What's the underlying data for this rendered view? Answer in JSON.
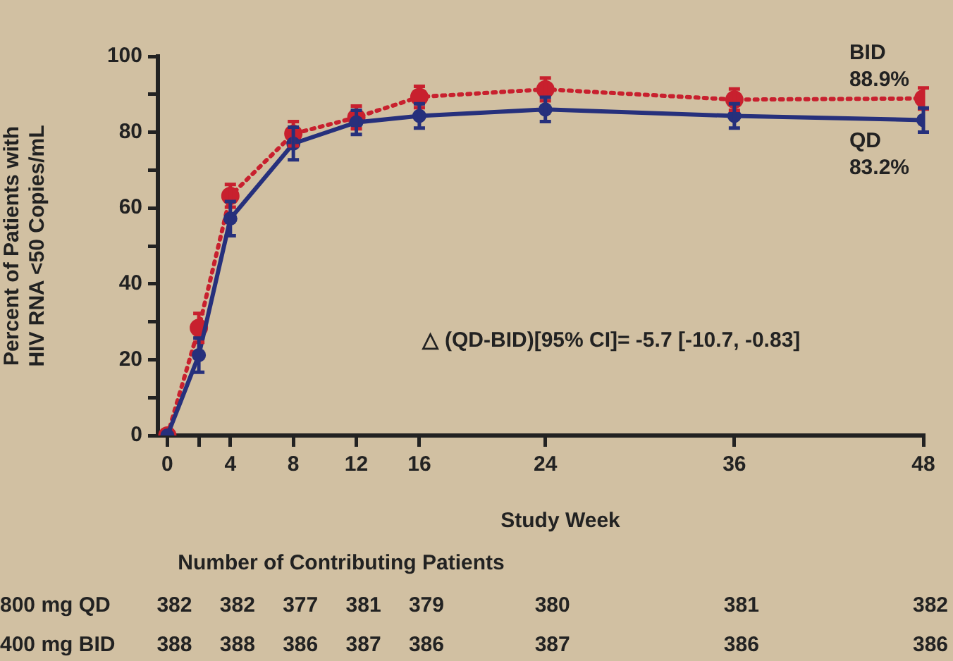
{
  "chart_data": {
    "type": "line",
    "ylabel": "Percent of Patients with\nHIV RNA <50 Copies/mL",
    "xlabel": "Study Week",
    "x": [
      0,
      2,
      4,
      8,
      12,
      16,
      24,
      36,
      48
    ],
    "xlim": [
      -0.6,
      48
    ],
    "xticks": [
      0,
      {
        "value": 2,
        "label": null
      },
      4,
      8,
      12,
      16,
      24,
      36,
      48
    ],
    "ylim": [
      0,
      100
    ],
    "yticks": [
      0,
      {
        "value": 10,
        "label": null
      },
      20,
      {
        "value": 30,
        "label": null
      },
      40,
      {
        "value": 50,
        "label": null
      },
      60,
      {
        "value": 70,
        "label": null
      },
      80,
      {
        "value": 90,
        "label": null
      },
      100
    ],
    "grid": false,
    "legend": false,
    "marker": "circle",
    "series": [
      {
        "name": "BID",
        "color": "#c8202e",
        "line_style": "dotted",
        "values": [
          0,
          28.4,
          63.2,
          79.6,
          83.9,
          89.3,
          91.3,
          88.6,
          88.9
        ],
        "errors": [
          null,
          3.8,
          3,
          3.2,
          3,
          2.8,
          3,
          2.8,
          2.8
        ],
        "value_labels": [
          null,
          null,
          null,
          null,
          null,
          null,
          null,
          null,
          "88.9%"
        ]
      },
      {
        "name": "QD",
        "color": "#26307c",
        "line_style": "solid",
        "values": [
          0,
          21.2,
          57.2,
          77,
          82.6,
          84.3,
          86,
          84.3,
          83.2
        ],
        "errors": [
          null,
          4.5,
          4.5,
          4.3,
          3.2,
          3.2,
          3.2,
          3.2,
          3.2
        ],
        "value_labels": [
          null,
          null,
          null,
          null,
          null,
          null,
          null,
          null,
          "83.2%"
        ]
      }
    ],
    "annotations": [
      "△ (QD-BID)[95% CI]= -5.7 [-10.7, -0.83]",
      "Number of Contributing Patients",
      "800 mg QD",
      "382",
      "382",
      "377",
      "381",
      "379",
      "380",
      "381",
      "382",
      "400 mg BID",
      "388",
      "388",
      "386",
      "387",
      "386",
      "387",
      "386",
      "386"
    ]
  }
}
